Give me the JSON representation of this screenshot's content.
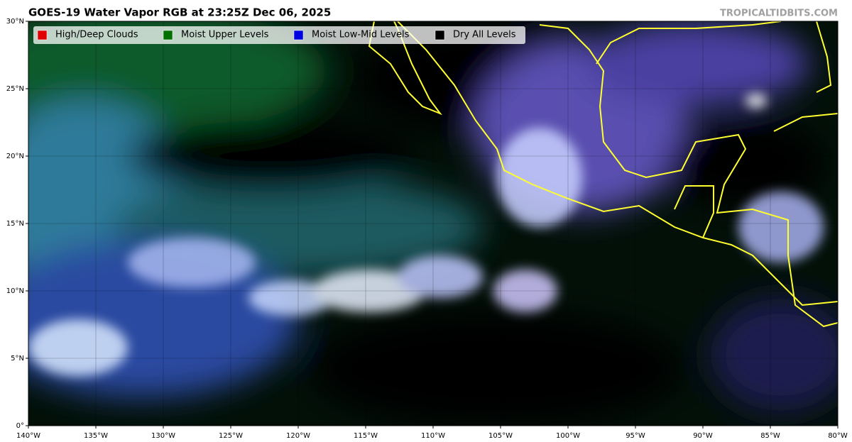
{
  "title": "GOES-19 Water Vapor RGB at 23:25Z Dec 06, 2025",
  "watermark": "TROPICALTIDBITS.COM",
  "legend": [
    {
      "label": "High/Deep Clouds",
      "color": "#e00000"
    },
    {
      "label": "Moist Upper Levels",
      "color": "#007000"
    },
    {
      "label": "Moist Low-Mid Levels",
      "color": "#0000e0"
    },
    {
      "label": "Dry All Levels",
      "color": "#000000"
    }
  ],
  "map": {
    "lon_range": [
      -140,
      -80
    ],
    "lat_range": [
      0,
      30
    ],
    "lon_ticks": [
      {
        "value": -140,
        "label": "140°W"
      },
      {
        "value": -135,
        "label": "135°W"
      },
      {
        "value": -130,
        "label": "130°W"
      },
      {
        "value": -125,
        "label": "125°W"
      },
      {
        "value": -120,
        "label": "120°W"
      },
      {
        "value": -115,
        "label": "115°W"
      },
      {
        "value": -110,
        "label": "110°W"
      },
      {
        "value": -105,
        "label": "105°W"
      },
      {
        "value": -100,
        "label": "100°W"
      },
      {
        "value": -95,
        "label": "95°W"
      },
      {
        "value": -90,
        "label": "90°W"
      },
      {
        "value": -85,
        "label": "85°W"
      },
      {
        "value": -80,
        "label": "80°W"
      }
    ],
    "lat_ticks": [
      {
        "value": 0,
        "label": "0°"
      },
      {
        "value": 5,
        "label": "5°N"
      },
      {
        "value": 10,
        "label": "10°N"
      },
      {
        "value": 15,
        "label": "15°N"
      },
      {
        "value": 20,
        "label": "20°N"
      },
      {
        "value": 25,
        "label": "25°N"
      },
      {
        "value": 30,
        "label": "30°N"
      }
    ]
  }
}
